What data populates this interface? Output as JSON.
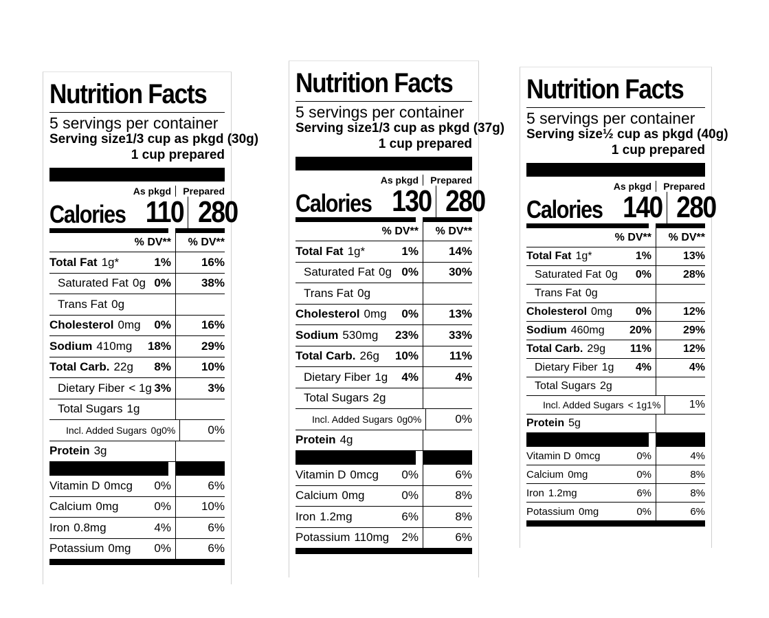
{
  "labels": [
    {
      "title": "Nutrition Facts",
      "servings": "5 servings per container",
      "serving_size_label": "Serving size",
      "serving_size_value": "1/3 cup as pkgd (30g)",
      "prepared_size": "1 cup prepared",
      "col_a_header": "As pkgd",
      "col_b_header": "Prepared",
      "calories_label": "Calories",
      "calories_a": "110",
      "calories_b": "280",
      "dv_a": "% DV**",
      "dv_b": "% DV**",
      "rows": [
        {
          "name": "Total Fat",
          "amount": "1g*",
          "a": "1%",
          "b": "16%"
        },
        {
          "name": "Saturated Fat",
          "amount": "0g",
          "a": "0%",
          "b": "38%"
        },
        {
          "name": "Trans Fat",
          "amount": "0g",
          "a": "",
          "b": ""
        },
        {
          "name": "Cholesterol",
          "amount": "0mg",
          "a": "0%",
          "b": "16%"
        },
        {
          "name": "Sodium",
          "amount": "410mg",
          "a": "18%",
          "b": "29%"
        },
        {
          "name": "Total Carb.",
          "amount": "22g",
          "a": "8%",
          "b": "10%"
        },
        {
          "name": "Dietary Fiber",
          "amount": "< 1g",
          "a": "3%",
          "b": "3%"
        },
        {
          "name": "Total Sugars",
          "amount": "1g",
          "a": "",
          "b": ""
        },
        {
          "name": "Incl. Added Sugars",
          "amount": "0g",
          "a": "0%",
          "b": "0%"
        },
        {
          "name": "Protein",
          "amount": "3g",
          "a": "",
          "b": ""
        }
      ],
      "vitamins": [
        {
          "name": "Vitamin D",
          "amount": "0mcg",
          "a": "0%",
          "b": "6%"
        },
        {
          "name": "Calcium",
          "amount": "0mg",
          "a": "0%",
          "b": "10%"
        },
        {
          "name": "Iron",
          "amount": "0.8mg",
          "a": "4%",
          "b": "6%"
        },
        {
          "name": "Potassium",
          "amount": "0mg",
          "a": "0%",
          "b": "6%"
        }
      ]
    },
    {
      "title": "Nutrition Facts",
      "servings": "5 servings per container",
      "serving_size_label": "Serving size",
      "serving_size_value": "1/3 cup as pkgd (37g)",
      "prepared_size": "1 cup prepared",
      "col_a_header": "As pkgd",
      "col_b_header": "Prepared",
      "calories_label": "Calories",
      "calories_a": "130",
      "calories_b": "280",
      "dv_a": "% DV**",
      "dv_b": "% DV**",
      "rows": [
        {
          "name": "Total Fat",
          "amount": "1g*",
          "a": "1%",
          "b": "14%"
        },
        {
          "name": "Saturated Fat",
          "amount": "0g",
          "a": "0%",
          "b": "30%"
        },
        {
          "name": "Trans Fat",
          "amount": "0g",
          "a": "",
          "b": ""
        },
        {
          "name": "Cholesterol",
          "amount": "0mg",
          "a": "0%",
          "b": "13%"
        },
        {
          "name": "Sodium",
          "amount": "530mg",
          "a": "23%",
          "b": "33%"
        },
        {
          "name": "Total Carb.",
          "amount": "26g",
          "a": "10%",
          "b": "11%"
        },
        {
          "name": "Dietary Fiber",
          "amount": "1g",
          "a": "4%",
          "b": "4%"
        },
        {
          "name": "Total Sugars",
          "amount": "2g",
          "a": "",
          "b": ""
        },
        {
          "name": "Incl. Added Sugars",
          "amount": "0g",
          "a": "0%",
          "b": "0%"
        },
        {
          "name": "Protein",
          "amount": "4g",
          "a": "",
          "b": ""
        }
      ],
      "vitamins": [
        {
          "name": "Vitamin D",
          "amount": "0mcg",
          "a": "0%",
          "b": "6%"
        },
        {
          "name": "Calcium",
          "amount": "0mg",
          "a": "0%",
          "b": "8%"
        },
        {
          "name": "Iron",
          "amount": "1.2mg",
          "a": "6%",
          "b": "8%"
        },
        {
          "name": "Potassium",
          "amount": "110mg",
          "a": "2%",
          "b": "6%"
        }
      ]
    },
    {
      "title": "Nutrition Facts",
      "servings": "5 servings per container",
      "serving_size_label": "Serving size",
      "serving_size_value": "½ cup as pkgd (40g)",
      "prepared_size": "1 cup prepared",
      "col_a_header": "As pkgd",
      "col_b_header": "Prepared",
      "calories_label": "Calories",
      "calories_a": "140",
      "calories_b": "280",
      "dv_a": "% DV**",
      "dv_b": "% DV**",
      "rows": [
        {
          "name": "Total Fat",
          "amount": "1g*",
          "a": "1%",
          "b": "13%"
        },
        {
          "name": "Saturated Fat",
          "amount": "0g",
          "a": "0%",
          "b": "28%"
        },
        {
          "name": "Trans Fat",
          "amount": "0g",
          "a": "",
          "b": ""
        },
        {
          "name": "Cholesterol",
          "amount": "0mg",
          "a": "0%",
          "b": "12%"
        },
        {
          "name": "Sodium",
          "amount": "460mg",
          "a": "20%",
          "b": "29%"
        },
        {
          "name": "Total Carb.",
          "amount": "29g",
          "a": "11%",
          "b": "12%"
        },
        {
          "name": "Dietary Fiber",
          "amount": "1g",
          "a": "4%",
          "b": "4%"
        },
        {
          "name": "Total Sugars",
          "amount": "2g",
          "a": "",
          "b": ""
        },
        {
          "name": "Incl. Added Sugars",
          "amount": "< 1g",
          "a": "1%",
          "b": "1%"
        },
        {
          "name": "Protein",
          "amount": "5g",
          "a": "",
          "b": ""
        }
      ],
      "vitamins": [
        {
          "name": "Vitamin D",
          "amount": "0mcg",
          "a": "0%",
          "b": "4%"
        },
        {
          "name": "Calcium",
          "amount": "0mg",
          "a": "0%",
          "b": "8%"
        },
        {
          "name": "Iron",
          "amount": "1.2mg",
          "a": "6%",
          "b": "8%"
        },
        {
          "name": "Potassium",
          "amount": "0mg",
          "a": "0%",
          "b": "6%"
        }
      ]
    }
  ]
}
